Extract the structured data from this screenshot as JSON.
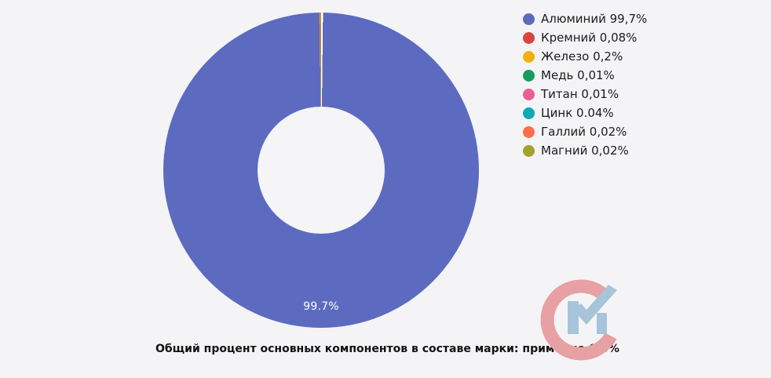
{
  "page": {
    "background_color": "#f4f4f6"
  },
  "chart_data": {
    "type": "pie",
    "donut": true,
    "categories": [
      "Алюминий",
      "Кремний",
      "Железо",
      "Медь",
      "Титан",
      "Цинк",
      "Галлий",
      "Магний"
    ],
    "values": [
      99.7,
      0.08,
      0.2,
      0.01,
      0.01,
      0.04,
      0.02,
      0.02
    ],
    "colors": [
      "#5c6bc0",
      "#d8453f",
      "#f1b012",
      "#169d5d",
      "#e95e93",
      "#0ba9ba",
      "#fb6e4b",
      "#a2a32b"
    ],
    "slice_label": "99.7%",
    "slice_label_color": "#ffffff",
    "separator_color": "#ffffff",
    "legend_position": "right",
    "start_angle_deg": 0,
    "title": "",
    "caption": "Общий процент основных компонентов в составе марки: примерно 0,3%"
  },
  "legend": {
    "items": [
      {
        "label": "Алюминий 99,7%",
        "color": "#5c6bc0"
      },
      {
        "label": "Кремний 0,08%",
        "color": "#d8453f"
      },
      {
        "label": "Железо 0,2%",
        "color": "#f1b012"
      },
      {
        "label": "Медь 0,01%",
        "color": "#169d5d"
      },
      {
        "label": "Титан 0,01%",
        "color": "#e95e93"
      },
      {
        "label": "Цинк 0.04%",
        "color": "#0ba9ba"
      },
      {
        "label": "Галлий 0,02%",
        "color": "#fb6e4b"
      },
      {
        "label": "Магний 0,02%",
        "color": "#a2a32b"
      }
    ]
  },
  "caption": {
    "text": "Общий процент основных компонентов в составе марки: примерно 0,3%"
  },
  "watermark": {
    "name": "CM logo",
    "c_color": "#e7a0a3",
    "m_color": "#a6c4da"
  }
}
